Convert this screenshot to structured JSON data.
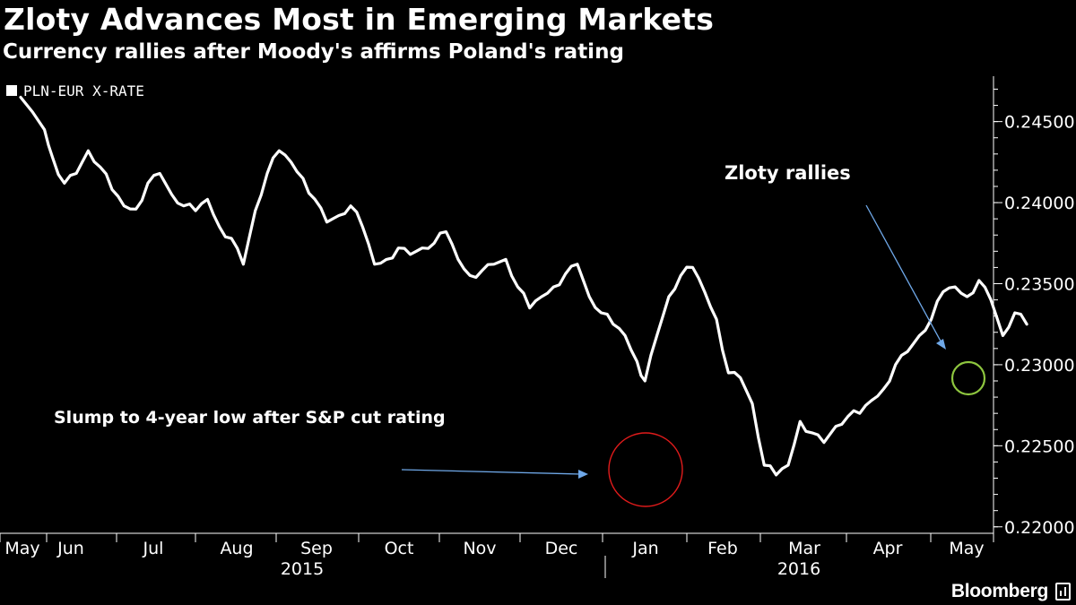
{
  "header": {
    "title": "Zloty Advances Most in Emerging Markets",
    "subtitle": "Currency rallies after Moody's affirms Poland's rating"
  },
  "brand": {
    "name": "Bloomberg"
  },
  "colors": {
    "background": "#000000",
    "line": "#ffffff",
    "arrow": "#6fa8e8",
    "circle_low": "#e01b1b",
    "circle_recent": "#8ec63f"
  },
  "chart_data": {
    "type": "line",
    "title": "Zloty Advances Most in Emerging Markets",
    "subtitle": "Currency rallies after Moody's affirms Poland's rating",
    "legend": {
      "entries": [
        "PLN-EUR X-RATE"
      ],
      "placement": "top-left"
    },
    "y_axis": {
      "position": "right",
      "ylim": [
        0.2196,
        0.2478
      ],
      "ticks": [
        0.22,
        0.225,
        0.23,
        0.235,
        0.24,
        0.245
      ],
      "tick_labels": [
        "0.22000",
        "0.22500",
        "0.23000",
        "0.23500",
        "0.24000",
        "0.24500"
      ]
    },
    "x_axis": {
      "months": [
        "May",
        "Jun",
        "Jul",
        "Aug",
        "Sep",
        "Oct",
        "Nov",
        "Dec",
        "Jan",
        "Feb",
        "Mar",
        "Apr",
        "May"
      ],
      "years": [
        "2015",
        "2016"
      ]
    },
    "grid": false,
    "series": [
      {
        "name": "PLN-EUR X-RATE",
        "x": [
          0.0,
          0.3,
          0.4,
          0.55,
          0.7,
          0.85,
          1.0,
          1.15,
          1.3,
          1.45,
          1.6,
          1.75,
          1.9,
          2.05,
          2.2,
          2.35,
          2.5,
          2.65,
          2.8,
          2.95,
          3.1,
          3.25,
          3.4,
          3.55,
          3.7,
          3.85,
          4.0,
          4.15,
          4.3,
          4.45,
          4.6,
          4.75,
          4.9,
          5.05,
          5.2,
          5.35,
          5.5,
          5.65,
          5.8,
          5.95,
          6.1,
          6.25,
          6.4,
          6.55,
          6.7,
          6.85,
          7.0,
          7.15,
          7.3,
          7.45,
          7.6,
          7.75,
          7.85,
          8.0,
          8.15,
          8.3,
          8.45,
          8.6,
          8.75,
          8.9,
          9.05,
          9.2,
          9.35,
          9.5,
          9.65,
          9.8,
          9.95,
          10.1,
          10.25,
          10.4,
          10.55,
          10.7,
          10.85,
          11.0,
          11.15,
          11.3,
          11.45,
          11.6,
          11.75,
          11.9,
          12.05,
          12.2,
          12.35,
          12.5,
          12.65
        ],
        "y": [
          0.2465,
          0.2445,
          0.2428,
          0.2412,
          0.2418,
          0.2432,
          0.2422,
          0.2408,
          0.2398,
          0.2396,
          0.2412,
          0.2418,
          0.2405,
          0.2398,
          0.2395,
          0.2402,
          0.2385,
          0.2378,
          0.2362,
          0.2395,
          0.2418,
          0.2432,
          0.2425,
          0.2415,
          0.2402,
          0.2388,
          0.2392,
          0.2398,
          0.2385,
          0.2362,
          0.2365,
          0.2372,
          0.2368,
          0.2372,
          0.2375,
          0.2382,
          0.2365,
          0.2355,
          0.2358,
          0.2362,
          0.2365,
          0.2348,
          0.2335,
          0.2342,
          0.2348,
          0.2356,
          0.2362,
          0.2342,
          0.2332,
          0.2325,
          0.2318,
          0.2302,
          0.229,
          0.2318,
          0.2342,
          0.2355,
          0.236,
          0.2345,
          0.2328,
          0.2295,
          0.2292,
          0.2276,
          0.2238,
          0.2232,
          0.2238,
          0.2265,
          0.2258,
          0.2252,
          0.2262,
          0.2268,
          0.227,
          0.2278,
          0.2285,
          0.23,
          0.2308,
          0.2318,
          0.2328,
          0.2345,
          0.2348,
          0.2342,
          0.2352,
          0.234,
          0.2318,
          0.2332,
          0.2325
        ]
      }
    ],
    "annotations": [
      {
        "text": "Zloty rallies"
      },
      {
        "text": "Slump to 4-year low after S&P cut rating"
      }
    ]
  }
}
